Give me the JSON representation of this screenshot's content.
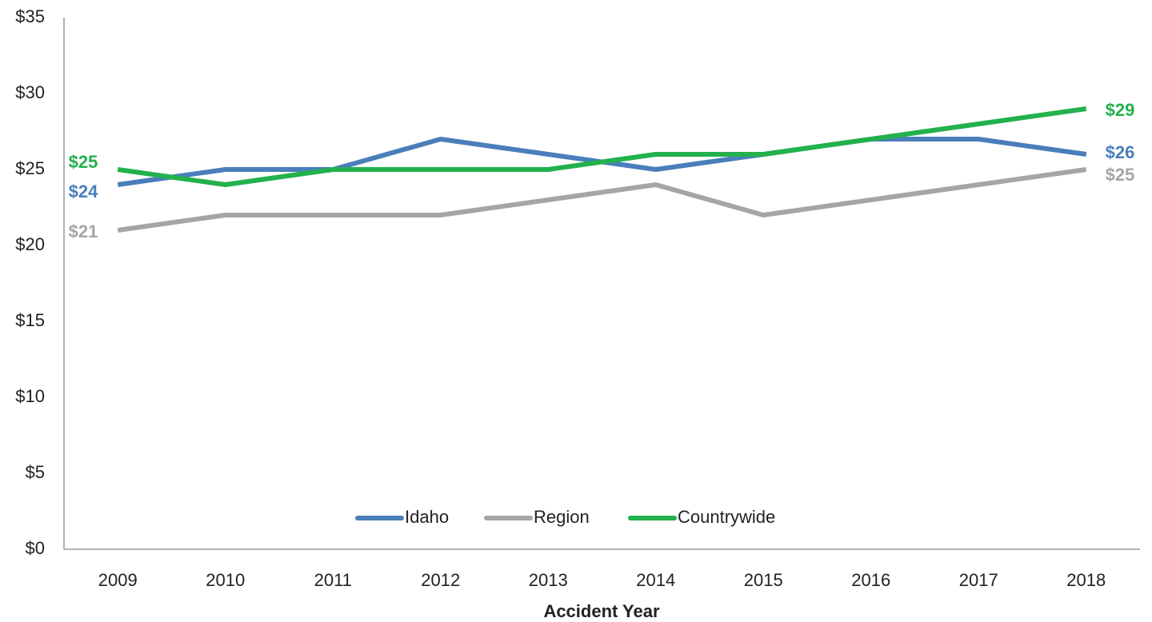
{
  "chart_data": {
    "type": "line",
    "x_label": "Accident Year",
    "categories": [
      "2009",
      "2010",
      "2011",
      "2012",
      "2013",
      "2014",
      "2015",
      "2016",
      "2017",
      "2018"
    ],
    "series": [
      {
        "name": "Idaho",
        "color": "#4a7ebb",
        "values": [
          24,
          25,
          25,
          27,
          26,
          25,
          26,
          27,
          27,
          26
        ],
        "value_labels": [
          "$24",
          null,
          null,
          null,
          null,
          null,
          null,
          null,
          null,
          "$26"
        ]
      },
      {
        "name": "Region",
        "color": "#a5a5a5",
        "values": [
          21,
          22,
          22,
          22,
          23,
          24,
          22,
          23,
          24,
          25
        ],
        "value_labels": [
          "$21",
          null,
          null,
          null,
          null,
          null,
          null,
          null,
          null,
          "$25"
        ]
      },
      {
        "name": "Countrywide",
        "color": "#22b14c",
        "values": [
          25,
          24,
          25,
          25,
          25,
          26,
          26,
          27,
          28,
          29
        ],
        "value_labels": [
          "$25",
          null,
          null,
          null,
          null,
          null,
          null,
          null,
          null,
          "$29"
        ]
      }
    ],
    "ylim": [
      0,
      35
    ],
    "yticks": [
      {
        "value": 0,
        "label": "$0"
      },
      {
        "value": 5,
        "label": "$5"
      },
      {
        "value": 10,
        "label": "$10"
      },
      {
        "value": 15,
        "label": "$15"
      },
      {
        "value": 20,
        "label": "$20"
      },
      {
        "value": 25,
        "label": "$25"
      },
      {
        "value": 30,
        "label": "$30"
      },
      {
        "value": 35,
        "label": "$35"
      }
    ],
    "grid": false,
    "legend": "bottom"
  }
}
